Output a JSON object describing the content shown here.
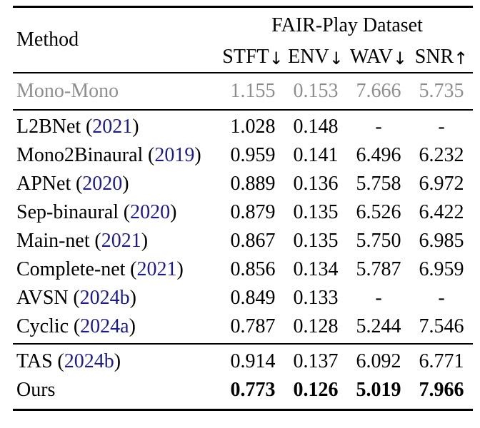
{
  "colors": {
    "text": "#000000",
    "muted_row": "#8e8e8e",
    "citation_link": "#1b1b8e",
    "rule": "#000000",
    "background": "#ffffff"
  },
  "table": {
    "paren_open": "(",
    "paren_close": ")",
    "header": {
      "method_label": "Method",
      "dataset_label": "FAIR-Play Dataset",
      "columns": [
        {
          "label": "STFT",
          "arrow": "↓"
        },
        {
          "label": "ENV",
          "arrow": "↓"
        },
        {
          "label": "WAV",
          "arrow": "↓"
        },
        {
          "label": "SNR",
          "arrow": "↑"
        }
      ]
    },
    "groups": [
      {
        "name": "baseline",
        "rows": [
          {
            "method": "Mono-Mono",
            "year": null,
            "values": [
              "1.155",
              "0.153",
              "7.666",
              "5.735"
            ],
            "style": "muted"
          }
        ]
      },
      {
        "name": "prior-methods",
        "rows": [
          {
            "method": "L2BNet",
            "year": "2021",
            "values": [
              "1.028",
              "0.148",
              "-",
              "-"
            ],
            "style": "normal"
          },
          {
            "method": "Mono2Binaural",
            "year": "2019",
            "values": [
              "0.959",
              "0.141",
              "6.496",
              "6.232"
            ],
            "style": "normal"
          },
          {
            "method": "APNet",
            "year": "2020",
            "values": [
              "0.889",
              "0.136",
              "5.758",
              "6.972"
            ],
            "style": "normal"
          },
          {
            "method": "Sep-binaural",
            "year": "2020",
            "values": [
              "0.879",
              "0.135",
              "6.526",
              "6.422"
            ],
            "style": "normal"
          },
          {
            "method": "Main-net",
            "year": "2021",
            "values": [
              "0.867",
              "0.135",
              "5.750",
              "6.985"
            ],
            "style": "normal"
          },
          {
            "method": "Complete-net",
            "year": "2021",
            "values": [
              "0.856",
              "0.134",
              "5.787",
              "6.959"
            ],
            "style": "normal"
          },
          {
            "method": "AVSN",
            "year": "2024b",
            "values": [
              "0.849",
              "0.133",
              "-",
              "-"
            ],
            "style": "normal"
          },
          {
            "method": "Cyclic",
            "year": "2024a",
            "values": [
              "0.787",
              "0.128",
              "5.244",
              "7.546"
            ],
            "style": "normal"
          }
        ]
      },
      {
        "name": "ours-section",
        "rows": [
          {
            "method": "TAS",
            "year": "2024b",
            "values": [
              "0.914",
              "0.137",
              "6.092",
              "6.771"
            ],
            "style": "normal"
          },
          {
            "method": "Ours",
            "year": null,
            "values": [
              "0.773",
              "0.126",
              "5.019",
              "7.966"
            ],
            "style": "bold-values"
          }
        ]
      }
    ]
  }
}
